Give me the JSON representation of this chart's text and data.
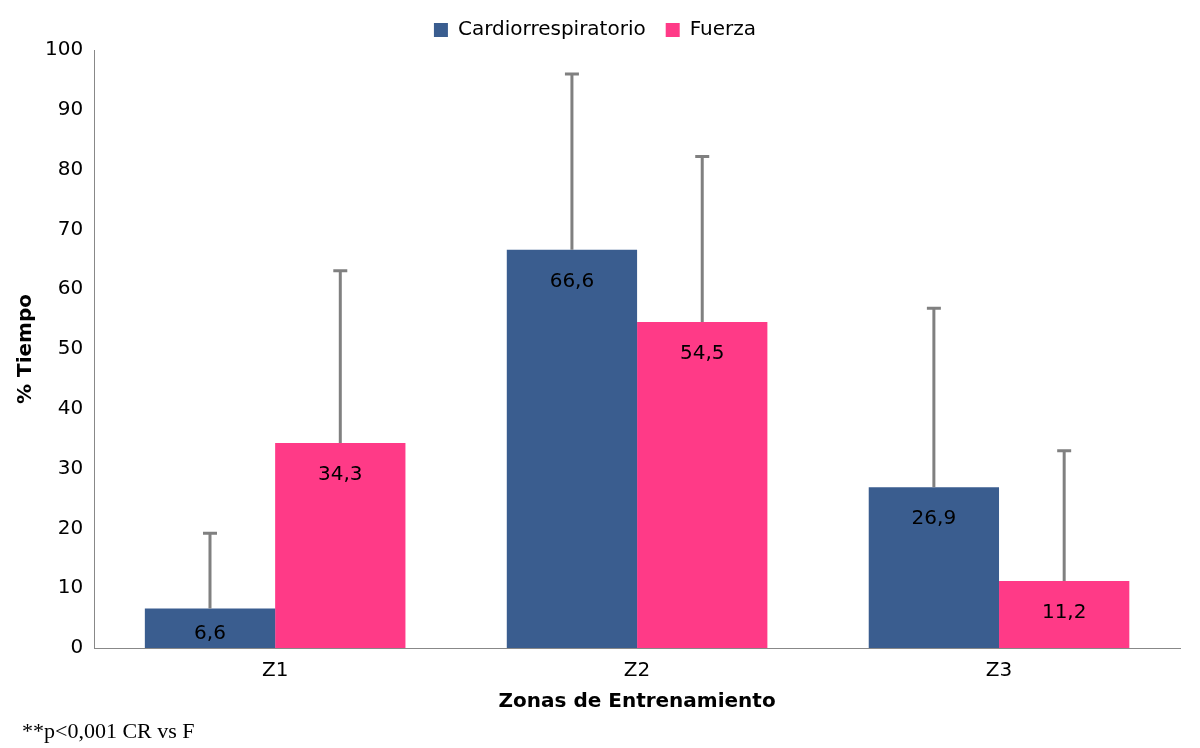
{
  "chart_data": {
    "type": "bar",
    "xlabel": "Zonas de Entrenamiento",
    "ylabel": "% Tiempo",
    "categories": [
      "Z1",
      "Z2",
      "Z3"
    ],
    "series": [
      {
        "name": "Cardiorrespiratorio",
        "color": "#3a5d8f",
        "values": [
          6.6,
          66.6,
          26.9
        ],
        "value_labels": [
          "6,6",
          "66,6",
          "26,9"
        ],
        "errors": [
          [
            6.6,
            19.2
          ],
          [
            66.6,
            96.0
          ],
          [
            26.9,
            56.8
          ]
        ]
      },
      {
        "name": "Fuerza",
        "color": "#ff3a87",
        "values": [
          34.3,
          54.5,
          11.2
        ],
        "value_labels": [
          "34,3",
          "54,5",
          "11,2"
        ],
        "errors": [
          [
            34.3,
            63.1
          ],
          [
            54.5,
            82.2
          ],
          [
            11.2,
            33.0
          ]
        ]
      }
    ],
    "ylim": [
      0,
      100
    ],
    "yticks": [
      0,
      10,
      20,
      30,
      40,
      50,
      60,
      70,
      80,
      90,
      100
    ],
    "grid": false,
    "legend": "top",
    "annotations": [
      "**p<0,001 CR vs F"
    ]
  }
}
